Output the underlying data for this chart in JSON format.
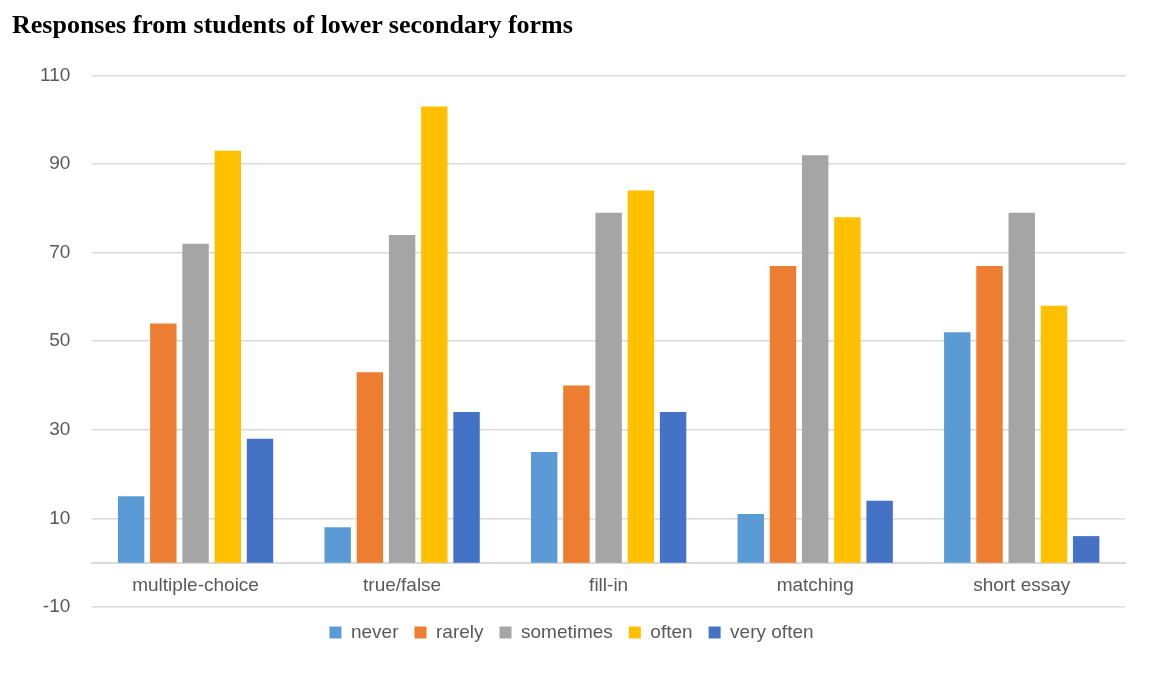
{
  "chart_data": {
    "type": "bar",
    "title": "Responses from students of lower secondary forms",
    "categories": [
      "multiple-choice",
      "true/false",
      "fill-in",
      "matching",
      "short essay"
    ],
    "series": [
      {
        "name": "never",
        "color": "#5b9bd5",
        "values": [
          15,
          8,
          25,
          11,
          52
        ]
      },
      {
        "name": "rarely",
        "color": "#ed7d31",
        "values": [
          54,
          43,
          40,
          67,
          67
        ]
      },
      {
        "name": "sometimes",
        "color": "#a5a5a5",
        "values": [
          72,
          74,
          79,
          92,
          79
        ]
      },
      {
        "name": "often",
        "color": "#ffc000",
        "values": [
          93,
          103,
          84,
          78,
          58
        ]
      },
      {
        "name": "very often",
        "color": "#4472c4",
        "values": [
          28,
          34,
          34,
          14,
          6
        ]
      }
    ],
    "ylim": [
      -10,
      110
    ],
    "yticks": [
      -10,
      10,
      30,
      50,
      70,
      90,
      110
    ],
    "grid": "y",
    "legend": "bottom"
  }
}
